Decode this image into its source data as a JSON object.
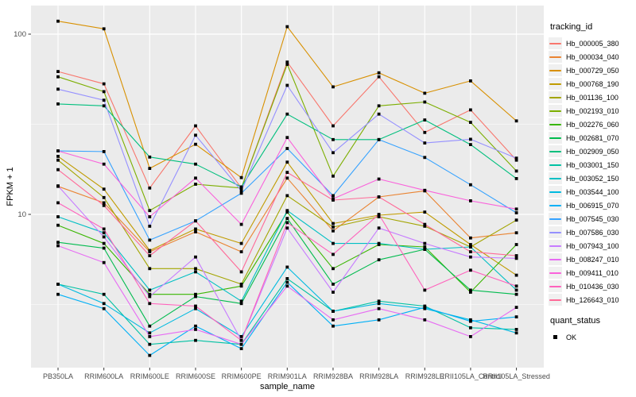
{
  "chart_data": {
    "type": "line",
    "title": "",
    "xlabel": "sample_name",
    "ylabel": "FPKM + 1",
    "y_scale": "log10",
    "y_ticks": [
      100,
      10
    ],
    "y_minor_ticks": [
      31.6228,
      3.16228
    ],
    "ylim": [
      1.4,
      145
    ],
    "grid": true,
    "legend_position": "right",
    "legend_title": "tracking_id",
    "quant_legend_title": "quant_status",
    "quant_legend_items": [
      {
        "label": "OK",
        "marker": "black-square"
      }
    ],
    "marker": "black-square",
    "panel_bg": "#EBEBEB",
    "grid_color": "#FFFFFF",
    "tick_label_color": "#4D4D4D",
    "categories": [
      "PB350LA",
      "RRIM600LA",
      "RRIM600LE",
      "RRIM600SE",
      "RRIM600PE",
      "RRIM901LA",
      "RRIM928BA",
      "RRIM928LA",
      "RRIM928LE",
      "RRII105LA_Control",
      "RRII105LA_Stressed"
    ],
    "series": [
      {
        "name": "Hb_000005_380",
        "color": "#F8766D",
        "values": [
          62,
          53,
          14,
          31,
          14,
          70,
          31,
          58,
          28.5,
          38,
          20
        ]
      },
      {
        "name": "Hb_000034_040",
        "color": "#EA8331",
        "values": [
          14.3,
          11.6,
          6.2,
          8.0,
          6.2,
          15.9,
          8.1,
          12.5,
          13.5,
          7.4,
          7.9
        ]
      },
      {
        "name": "Hb_000729_050",
        "color": "#D89000",
        "values": [
          118,
          107,
          18,
          24.5,
          16,
          110,
          51,
          61,
          47,
          55,
          33
        ]
      },
      {
        "name": "Hb_000768_190",
        "color": "#C09B00",
        "values": [
          21,
          13.8,
          6.3,
          8.3,
          6.9,
          19.5,
          8.9,
          9.9,
          10.3,
          6.8,
          4.6
        ]
      },
      {
        "name": "Hb_001136_100",
        "color": "#A3A500",
        "values": [
          20,
          12.4,
          5.0,
          5.0,
          4.1,
          12.7,
          8.5,
          9.7,
          8.6,
          6.6,
          9.3
        ]
      },
      {
        "name": "Hb_002193_010",
        "color": "#7CAE00",
        "values": [
          58,
          48,
          10.5,
          14.7,
          14,
          68,
          16.3,
          40,
          42,
          32.4,
          17.4
        ]
      },
      {
        "name": "Hb_002276_060",
        "color": "#39B600",
        "values": [
          8.7,
          6.9,
          3.6,
          3.6,
          4.0,
          10.3,
          5.0,
          6.8,
          6.6,
          3.7,
          6.8
        ]
      },
      {
        "name": "Hb_002681_070",
        "color": "#00BB4E",
        "values": [
          7.0,
          6.5,
          2.4,
          3.5,
          3.2,
          9.5,
          4.1,
          5.6,
          6.4,
          3.8,
          3.6
        ]
      },
      {
        "name": "Hb_002909_050",
        "color": "#00BF7D",
        "values": [
          41,
          40,
          20.8,
          19,
          14.2,
          36,
          26,
          26,
          33.4,
          24.4,
          15.8
        ]
      },
      {
        "name": "Hb_003001_150",
        "color": "#00C1A3",
        "values": [
          4.1,
          3.6,
          1.9,
          2.0,
          1.9,
          4.4,
          2.9,
          3.3,
          3.1,
          2.35,
          2.3
        ]
      },
      {
        "name": "Hb_003052_150",
        "color": "#00BFC4",
        "values": [
          9.7,
          7.9,
          3.8,
          4.8,
          3.3,
          10.5,
          6.9,
          6.9,
          6.4,
          6.6,
          3.8
        ]
      },
      {
        "name": "Hb_003544_100",
        "color": "#00BAE0",
        "values": [
          4.1,
          3.2,
          2.2,
          3.0,
          2.1,
          5.1,
          2.9,
          3.2,
          3.0,
          2.6,
          2.2
        ]
      },
      {
        "name": "Hb_006915_070",
        "color": "#00B0F6",
        "values": [
          3.6,
          3.0,
          1.65,
          2.4,
          1.8,
          4.2,
          2.4,
          2.6,
          3.05,
          2.55,
          2.7
        ]
      },
      {
        "name": "Hb_007545_030",
        "color": "#35A2FF",
        "values": [
          22.5,
          22.3,
          7.2,
          9.2,
          13.1,
          23.2,
          12.7,
          26,
          20.7,
          14.6,
          10.2
        ]
      },
      {
        "name": "Hb_007586_030",
        "color": "#9590FF",
        "values": [
          49.5,
          43,
          8.6,
          27.5,
          13.5,
          52,
          22,
          36,
          24.9,
          26.1,
          20.5
        ]
      },
      {
        "name": "Hb_007943_100",
        "color": "#C77CFF",
        "values": [
          14.4,
          7.5,
          3.5,
          5.8,
          2.0,
          8.4,
          3.7,
          8.4,
          6.9,
          5.8,
          5.7
        ]
      },
      {
        "name": "Hb_008247_010",
        "color": "#E76BF3",
        "values": [
          6.7,
          5.4,
          2.1,
          2.3,
          1.9,
          4.0,
          2.6,
          3.0,
          2.6,
          2.1,
          3.05
        ]
      },
      {
        "name": "Hb_009411_010",
        "color": "#FA62DB",
        "values": [
          22.5,
          19,
          9.7,
          15.9,
          8.8,
          26.7,
          12.2,
          15.7,
          13.6,
          11.9,
          10.7
        ]
      },
      {
        "name": "Hb_010436_030",
        "color": "#FF62BC",
        "values": [
          11.6,
          8.3,
          3.2,
          3.1,
          2.0,
          9.0,
          6.0,
          10.0,
          3.8,
          4.9,
          4.0
        ]
      },
      {
        "name": "Hb_126643_010",
        "color": "#FF6A98",
        "values": [
          17.7,
          11.2,
          5.9,
          9.2,
          4.8,
          17.1,
          12.0,
          12.5,
          8.8,
          6.2,
          5.9
        ]
      }
    ]
  }
}
